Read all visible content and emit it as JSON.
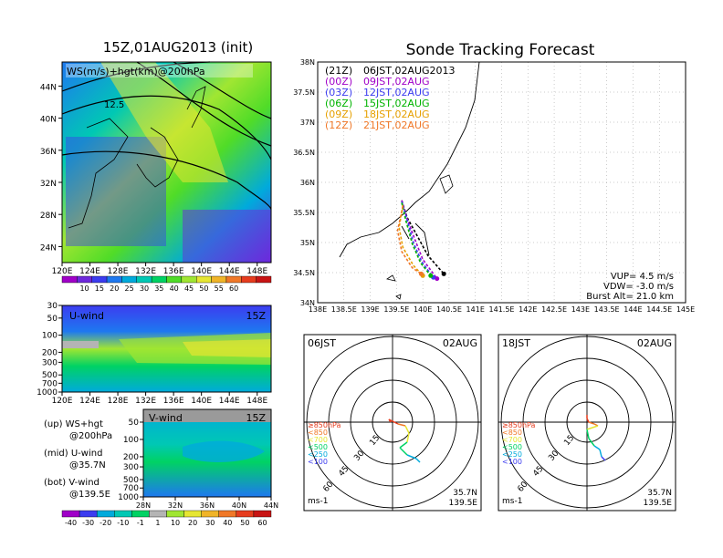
{
  "left_panel": {
    "title": "15Z,01AUG2013 (init)",
    "map_label": "WS(m/s)+hgt(km)@200hPa",
    "contour_label": "12.5",
    "lat_ticks": [
      "44N",
      "40N",
      "36N",
      "32N",
      "28N",
      "24N"
    ],
    "lon_ticks": [
      "120E",
      "124E",
      "128E",
      "132E",
      "136E",
      "140E",
      "144E",
      "148E"
    ],
    "colorbar_ticks": [
      "10",
      "15",
      "20",
      "25",
      "30",
      "35",
      "40",
      "45",
      "50",
      "55",
      "60"
    ],
    "colorbar_colors": [
      "#a000c8",
      "#6e28dc",
      "#3c3cf0",
      "#1e78f0",
      "#00aadc",
      "#00c8b4",
      "#00d264",
      "#50dc28",
      "#a0e632",
      "#e6e632",
      "#f0b428",
      "#f07828",
      "#e63c1e",
      "#c81414"
    ]
  },
  "u_panel": {
    "label": "U-wind",
    "time": "15Z",
    "p_ticks": [
      "30",
      "50",
      "100",
      "200",
      "300",
      "500",
      "700",
      "1000"
    ],
    "lon_ticks": [
      "120E",
      "124E",
      "128E",
      "132E",
      "136E",
      "140E",
      "144E",
      "148E"
    ]
  },
  "v_panel": {
    "label": "V-wind",
    "time": "15Z",
    "p_ticks": [
      "50",
      "100",
      "200",
      "300",
      "500",
      "700",
      "1000"
    ],
    "lat_ticks": [
      "28N",
      "32N",
      "36N",
      "40N",
      "44N"
    ]
  },
  "legend_text": {
    "up1": "(up) WS+hgt",
    "up2": "@200hPa",
    "mid1": "(mid) U-wind",
    "mid2": "@35.7N",
    "bot1": "(bot) V-wind",
    "bot2": "@139.5E"
  },
  "bottom_colorbar": {
    "ticks": [
      "-40",
      "-30",
      "-20",
      "-10",
      "-1",
      "1",
      "10",
      "20",
      "30",
      "40",
      "50",
      "60"
    ],
    "colors": [
      "#a000c8",
      "#3c3cf0",
      "#00aadc",
      "#00c8b4",
      "#00d264",
      "#b4b4b4",
      "#a0e632",
      "#e6e632",
      "#f0b428",
      "#f07828",
      "#e63c1e",
      "#c81414"
    ]
  },
  "tracking": {
    "title": "Sonde Tracking Forecast",
    "lat_ticks": [
      "38N",
      "37.5N",
      "37N",
      "36.5N",
      "36N",
      "35.5N",
      "35N",
      "34.5N",
      "34N"
    ],
    "lon_ticks": [
      "138E",
      "138.5E",
      "139E",
      "139.5E",
      "140E",
      "140.5E",
      "141E",
      "141.5E",
      "142E",
      "142.5E",
      "143E",
      "143.5E",
      "144E",
      "144.5E",
      "145E"
    ],
    "launches": [
      {
        "utc": "(21Z)",
        "jst": "06JST,02AUG2013",
        "color": "#000000"
      },
      {
        "utc": "(00Z)",
        "jst": "09JST,02AUG",
        "color": "#a000c8"
      },
      {
        "utc": "(03Z)",
        "jst": "12JST,02AUG",
        "color": "#3c3cf0"
      },
      {
        "utc": "(06Z)",
        "jst": "15JST,02AUG",
        "color": "#00b400"
      },
      {
        "utc": "(09Z)",
        "jst": "18JST,02AUG",
        "color": "#e6a000"
      },
      {
        "utc": "(12Z)",
        "jst": "21JST,02AUG",
        "color": "#f07828"
      }
    ],
    "vup": "VUP= 4.5 m/s",
    "vdw": "VDW= -3.0 m/s",
    "burst": "Burst Alt= 21.0 km"
  },
  "polar_left": {
    "time": "06JST",
    "date": "02AUG",
    "ring_labels": [
      "15",
      "30",
      "45",
      "60"
    ],
    "levels": [
      "≥850hPa",
      "<850",
      "<700",
      "<500",
      "<250",
      "<100"
    ],
    "level_colors": [
      "#e63c1e",
      "#f07828",
      "#e6e632",
      "#00d264",
      "#00aadc",
      "#3c3cf0"
    ],
    "units": "ms-1",
    "lat": "35.7N",
    "lon": "139.5E"
  },
  "polar_right": {
    "time": "18JST",
    "date": "02AUG",
    "ring_labels": [
      "15",
      "30",
      "45",
      "60"
    ],
    "levels": [
      "≥850hPa",
      "<850",
      "<700",
      "<500",
      "<250",
      "<100"
    ],
    "level_colors": [
      "#e63c1e",
      "#f07828",
      "#e6e632",
      "#00d264",
      "#00aadc",
      "#3c3cf0"
    ],
    "units": "ms-1",
    "lat": "35.7N",
    "lon": "139.5E"
  },
  "chart_data": [
    {
      "type": "heatmap",
      "title": "15Z,01AUG2013 (init)",
      "subtitle": "WS(m/s)+hgt(km)@200hPa",
      "colorbar": [
        10,
        15,
        20,
        25,
        30,
        35,
        40,
        45,
        50,
        55,
        60
      ],
      "xlim": [
        120,
        150
      ],
      "ylim": [
        22,
        47
      ]
    },
    {
      "type": "heatmap",
      "title": "U-wind",
      "x": [
        "120E",
        "124E",
        "128E",
        "132E",
        "136E",
        "140E",
        "144E",
        "148E"
      ],
      "y": [
        30,
        50,
        100,
        200,
        300,
        500,
        700,
        1000
      ]
    },
    {
      "type": "heatmap",
      "title": "V-wind",
      "x": [
        "28N",
        "32N",
        "36N",
        "40N",
        "44N"
      ],
      "y": [
        50,
        100,
        200,
        300,
        500,
        700,
        1000
      ],
      "colorbar": [
        -40,
        -30,
        -20,
        -10,
        -1,
        1,
        10,
        20,
        30,
        40,
        50,
        60
      ]
    },
    {
      "type": "line",
      "title": "Sonde Tracking Forecast",
      "xlim": [
        138,
        145
      ],
      "ylim": [
        34,
        38
      ],
      "series": [
        {
          "name": "(21Z) 06JST,02AUG2013",
          "points": [
            [
              139.6,
              35.7
            ],
            [
              139.7,
              35.42
            ],
            [
              139.9,
              35.1
            ],
            [
              140.1,
              34.78
            ],
            [
              140.4,
              34.48
            ]
          ]
        },
        {
          "name": "(00Z) 09JST,02AUG",
          "points": [
            [
              139.6,
              35.7
            ],
            [
              139.7,
              35.4
            ],
            [
              139.85,
              35.05
            ],
            [
              140.0,
              34.72
            ],
            [
              140.27,
              34.4
            ]
          ]
        },
        {
          "name": "(03Z) 12JST,02AUG",
          "points": [
            [
              139.6,
              35.68
            ],
            [
              139.7,
              35.38
            ],
            [
              139.82,
              35.0
            ],
            [
              139.98,
              34.68
            ],
            [
              140.2,
              34.42
            ]
          ]
        },
        {
          "name": "(06Z) 15JST,02AUG",
          "points": [
            [
              139.6,
              35.66
            ],
            [
              139.68,
              35.36
            ],
            [
              139.8,
              34.98
            ],
            [
              139.96,
              34.66
            ],
            [
              140.15,
              34.45
            ]
          ]
        },
        {
          "name": "(09Z) 18JST,02AUG",
          "points": [
            [
              139.62,
              35.62
            ],
            [
              139.55,
              35.25
            ],
            [
              139.62,
              34.92
            ],
            [
              139.82,
              34.62
            ],
            [
              140.0,
              34.45
            ]
          ]
        },
        {
          "name": "(12Z) 21JST,02AUG",
          "points": [
            [
              139.62,
              35.6
            ],
            [
              139.52,
              35.2
            ],
            [
              139.6,
              34.85
            ],
            [
              139.8,
              34.58
            ],
            [
              139.97,
              34.48
            ]
          ]
        }
      ]
    }
  ]
}
